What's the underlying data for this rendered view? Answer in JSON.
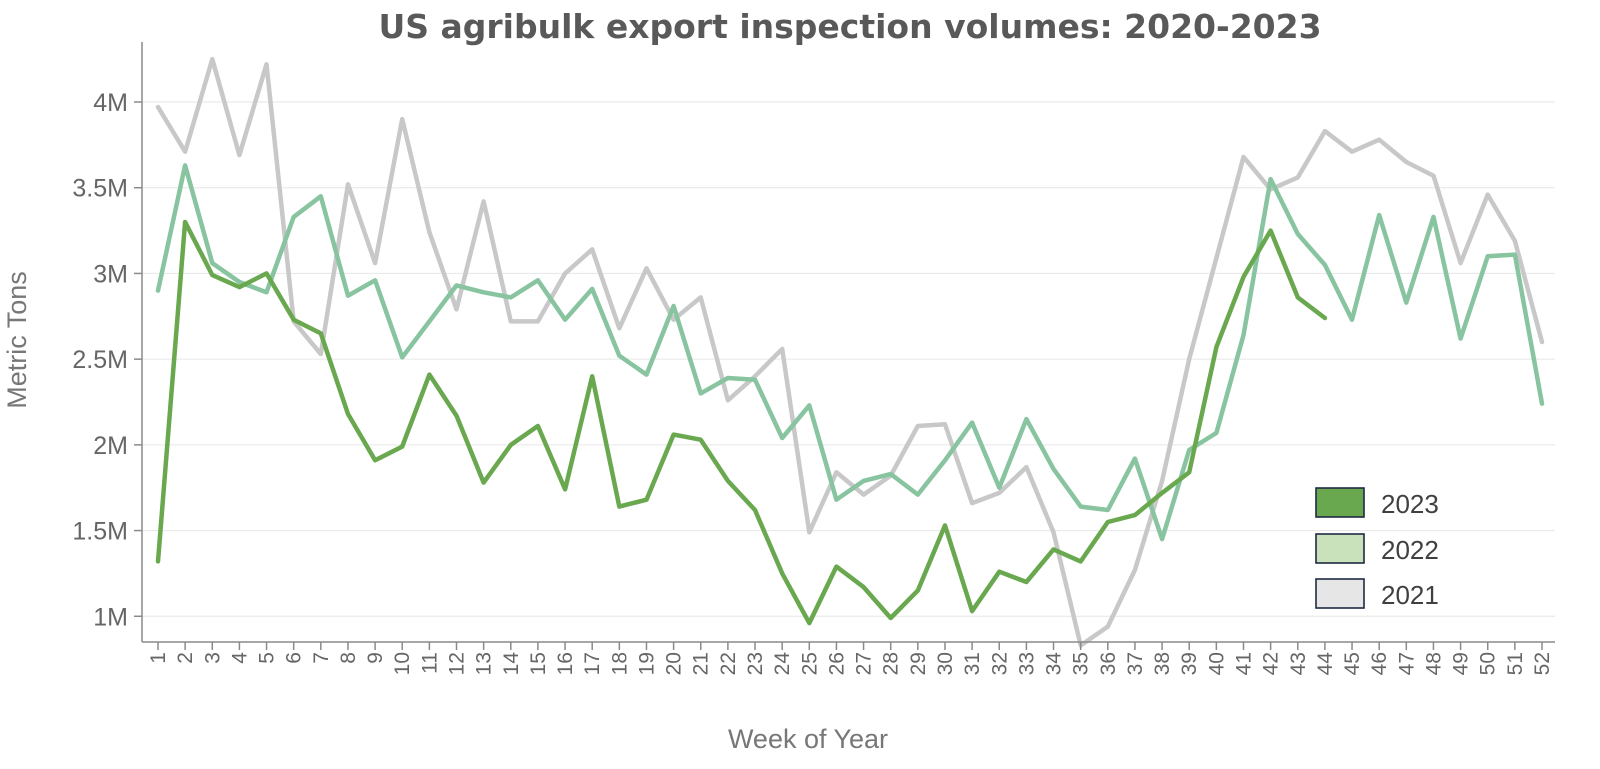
{
  "chart_data": {
    "type": "line",
    "title": "US agribulk export inspection volumes: 2020-2023",
    "xlabel": "Week of Year",
    "ylabel": "Metric Tons",
    "ylim": [
      850000,
      4350000
    ],
    "yticks": [
      {
        "value": 1000000,
        "label": "1M"
      },
      {
        "value": 1500000,
        "label": "1.5M"
      },
      {
        "value": 2000000,
        "label": "2M"
      },
      {
        "value": 2500000,
        "label": "2.5M"
      },
      {
        "value": 3000000,
        "label": "3M"
      },
      {
        "value": 3500000,
        "label": "3.5M"
      },
      {
        "value": 4000000,
        "label": "4M"
      }
    ],
    "x": [
      "1",
      "2",
      "3",
      "4",
      "5",
      "6",
      "7",
      "8",
      "9",
      "10",
      "11",
      "12",
      "13",
      "14",
      "15",
      "16",
      "17",
      "18",
      "19",
      "20",
      "21",
      "22",
      "23",
      "24",
      "25",
      "26",
      "27",
      "28",
      "29",
      "30",
      "31",
      "32",
      "33",
      "34",
      "35",
      "36",
      "37",
      "38",
      "39",
      "40",
      "41",
      "42",
      "43",
      "44",
      "45",
      "46",
      "47",
      "48",
      "49",
      "50",
      "51",
      "52"
    ],
    "grid": true,
    "legend": "bottom-right",
    "series": [
      {
        "name": "2021",
        "color": "#c8c8c8",
        "swatch": "#e6e6e6",
        "values": [
          3970000,
          3710000,
          4250000,
          3690000,
          4220000,
          2720000,
          2530000,
          3520000,
          3060000,
          3900000,
          3240000,
          2790000,
          3420000,
          2720000,
          2720000,
          3000000,
          3140000,
          2680000,
          3030000,
          2730000,
          2860000,
          2260000,
          2400000,
          2560000,
          1490000,
          1840000,
          1710000,
          1820000,
          2110000,
          2120000,
          1660000,
          1720000,
          1870000,
          1490000,
          830000,
          940000,
          1270000,
          1790000,
          2500000,
          3090000,
          3680000,
          3490000,
          3560000,
          3830000,
          3710000,
          3780000,
          3650000,
          3570000,
          3060000,
          3460000,
          3190000,
          2600000
        ]
      },
      {
        "name": "2022",
        "color": "#88c4a0",
        "swatch": "#c9e2bb",
        "values": [
          2900000,
          3630000,
          3060000,
          2950000,
          2890000,
          3330000,
          3450000,
          2870000,
          2960000,
          2510000,
          2720000,
          2930000,
          2890000,
          2860000,
          2960000,
          2730000,
          2910000,
          2520000,
          2410000,
          2810000,
          2300000,
          2390000,
          2380000,
          2040000,
          2230000,
          1680000,
          1790000,
          1830000,
          1710000,
          1910000,
          2130000,
          1750000,
          2150000,
          1860000,
          1640000,
          1620000,
          1920000,
          1450000,
          1970000,
          2070000,
          2640000,
          3550000,
          3230000,
          3050000,
          2730000,
          3340000,
          2830000,
          3330000,
          2620000,
          3100000,
          3110000,
          2240000
        ]
      },
      {
        "name": "2023",
        "color": "#6aa84f",
        "swatch": "#6aa84f",
        "values": [
          1320000,
          3300000,
          2990000,
          2920000,
          3000000,
          2730000,
          2650000,
          2180000,
          1910000,
          1990000,
          2410000,
          2170000,
          1780000,
          2000000,
          2110000,
          1740000,
          2400000,
          1640000,
          1680000,
          2060000,
          2030000,
          1790000,
          1620000,
          1250000,
          960000,
          1290000,
          1170000,
          990000,
          1150000,
          1530000,
          1030000,
          1260000,
          1200000,
          1390000,
          1320000,
          1550000,
          1590000,
          1720000,
          1840000,
          2570000,
          2980000,
          3250000,
          2860000,
          2740000,
          null,
          null,
          null,
          null,
          null,
          null,
          null,
          null
        ]
      }
    ]
  }
}
